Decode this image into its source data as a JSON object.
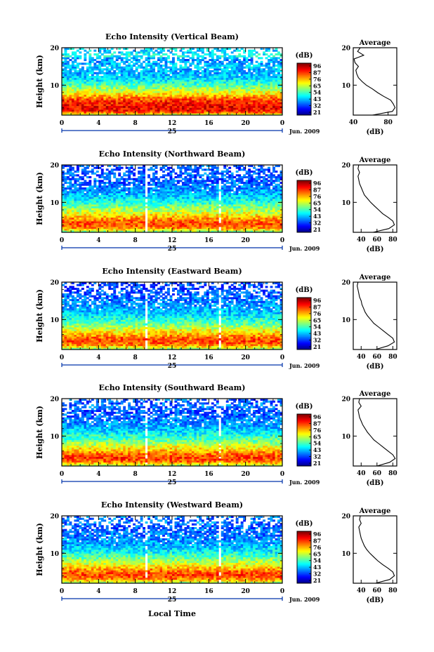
{
  "figure": {
    "time_ticks": [
      "0",
      "4",
      "8",
      "12",
      "16",
      "20",
      "0"
    ],
    "date_day": "25",
    "date_month": "Jun. 2009",
    "xlabel": "Local Time",
    "ylabel": "Height (km)",
    "colorbar_unit": "(dB)",
    "colorbar_ticks": [
      "96",
      "87",
      "76",
      "65",
      "54",
      "43",
      "32",
      "21"
    ],
    "average_title": "Average",
    "average_xlabel": "(dB)",
    "height_ticks": [
      "20",
      "10"
    ]
  },
  "chart_data": [
    {
      "type": "heatmap",
      "title": "Echo Intensity (Vertical Beam)",
      "xlabel": "Local Time",
      "ylabel": "Height (km)",
      "xlim": [
        0,
        24
      ],
      "ylim": [
        2,
        20
      ],
      "zlim": [
        21,
        96
      ],
      "colorbar_label": "(dB)",
      "profile": {
        "title": "Average",
        "xlabel": "(dB)",
        "xticks": [
          "40",
          "80"
        ],
        "xlim": [
          40,
          90
        ],
        "heights": [
          2,
          3,
          4,
          5,
          6,
          7,
          8,
          9,
          10,
          11,
          12,
          13,
          14,
          15,
          16,
          17,
          18,
          19,
          20
        ],
        "values": [
          62,
          85,
          88,
          86,
          83,
          75,
          68,
          62,
          55,
          50,
          46,
          44,
          43,
          46,
          42,
          41,
          52,
          45,
          48
        ]
      }
    },
    {
      "type": "heatmap",
      "title": "Echo Intensity (Northward Beam)",
      "xlabel": "Local Time",
      "ylabel": "Height (km)",
      "xlim": [
        0,
        24
      ],
      "ylim": [
        2,
        20
      ],
      "zlim": [
        21,
        96
      ],
      "colorbar_label": "(dB)",
      "profile": {
        "title": "Average",
        "xlabel": "(dB)",
        "xticks": [
          "40",
          "60",
          "80"
        ],
        "xlim": [
          30,
          85
        ],
        "heights": [
          2,
          3,
          4,
          5,
          6,
          7,
          8,
          9,
          10,
          11,
          12,
          13,
          14,
          15,
          16,
          17,
          18,
          19,
          20
        ],
        "values": [
          55,
          75,
          82,
          80,
          74,
          67,
          62,
          57,
          52,
          48,
          44,
          42,
          40,
          38,
          37,
          36,
          38,
          36,
          37
        ]
      }
    },
    {
      "type": "heatmap",
      "title": "Echo Intensity (Eastward Beam)",
      "xlabel": "Local Time",
      "ylabel": "Height (km)",
      "xlim": [
        0,
        24
      ],
      "ylim": [
        2,
        20
      ],
      "zlim": [
        21,
        96
      ],
      "colorbar_label": "(dB)",
      "profile": {
        "title": "Average",
        "xlabel": "(dB)",
        "xticks": [
          "40",
          "60",
          "80"
        ],
        "xlim": [
          30,
          85
        ],
        "heights": [
          2,
          3,
          4,
          5,
          6,
          7,
          8,
          9,
          10,
          11,
          12,
          13,
          14,
          15,
          16,
          17,
          18,
          19,
          20
        ],
        "values": [
          58,
          74,
          82,
          80,
          74,
          68,
          62,
          56,
          52,
          48,
          45,
          43,
          41,
          40,
          38,
          37,
          36,
          35,
          36
        ]
      }
    },
    {
      "type": "heatmap",
      "title": "Echo Intensity (Southward Beam)",
      "xlabel": "Local Time",
      "ylabel": "Height (km)",
      "xlim": [
        0,
        24
      ],
      "ylim": [
        2,
        20
      ],
      "zlim": [
        21,
        96
      ],
      "colorbar_label": "(dB)",
      "profile": {
        "title": "Average",
        "xlabel": "(dB)",
        "xticks": [
          "40",
          "60",
          "80"
        ],
        "xlim": [
          30,
          85
        ],
        "heights": [
          2,
          3,
          4,
          5,
          6,
          7,
          8,
          9,
          10,
          11,
          12,
          13,
          14,
          15,
          16,
          17,
          18,
          19,
          20
        ],
        "values": [
          60,
          76,
          83,
          80,
          74,
          68,
          62,
          56,
          52,
          48,
          45,
          42,
          40,
          38,
          37,
          36,
          40,
          37,
          38
        ]
      }
    },
    {
      "type": "heatmap",
      "title": "Echo Intensity (Westward Beam)",
      "xlabel": "Local Time",
      "ylabel": "Height (km)",
      "xlim": [
        0,
        24
      ],
      "ylim": [
        2,
        20
      ],
      "zlim": [
        21,
        96
      ],
      "colorbar_label": "(dB)",
      "profile": {
        "title": "Average",
        "xlabel": "(dB)",
        "xticks": [
          "40",
          "60",
          "80"
        ],
        "xlim": [
          30,
          85
        ],
        "heights": [
          2,
          3,
          4,
          5,
          6,
          7,
          8,
          9,
          10,
          11,
          12,
          13,
          14,
          15,
          16,
          17,
          18,
          19,
          20
        ],
        "values": [
          58,
          76,
          82,
          80,
          74,
          67,
          61,
          56,
          51,
          47,
          44,
          42,
          40,
          39,
          38,
          37,
          40,
          38,
          39
        ]
      }
    }
  ]
}
